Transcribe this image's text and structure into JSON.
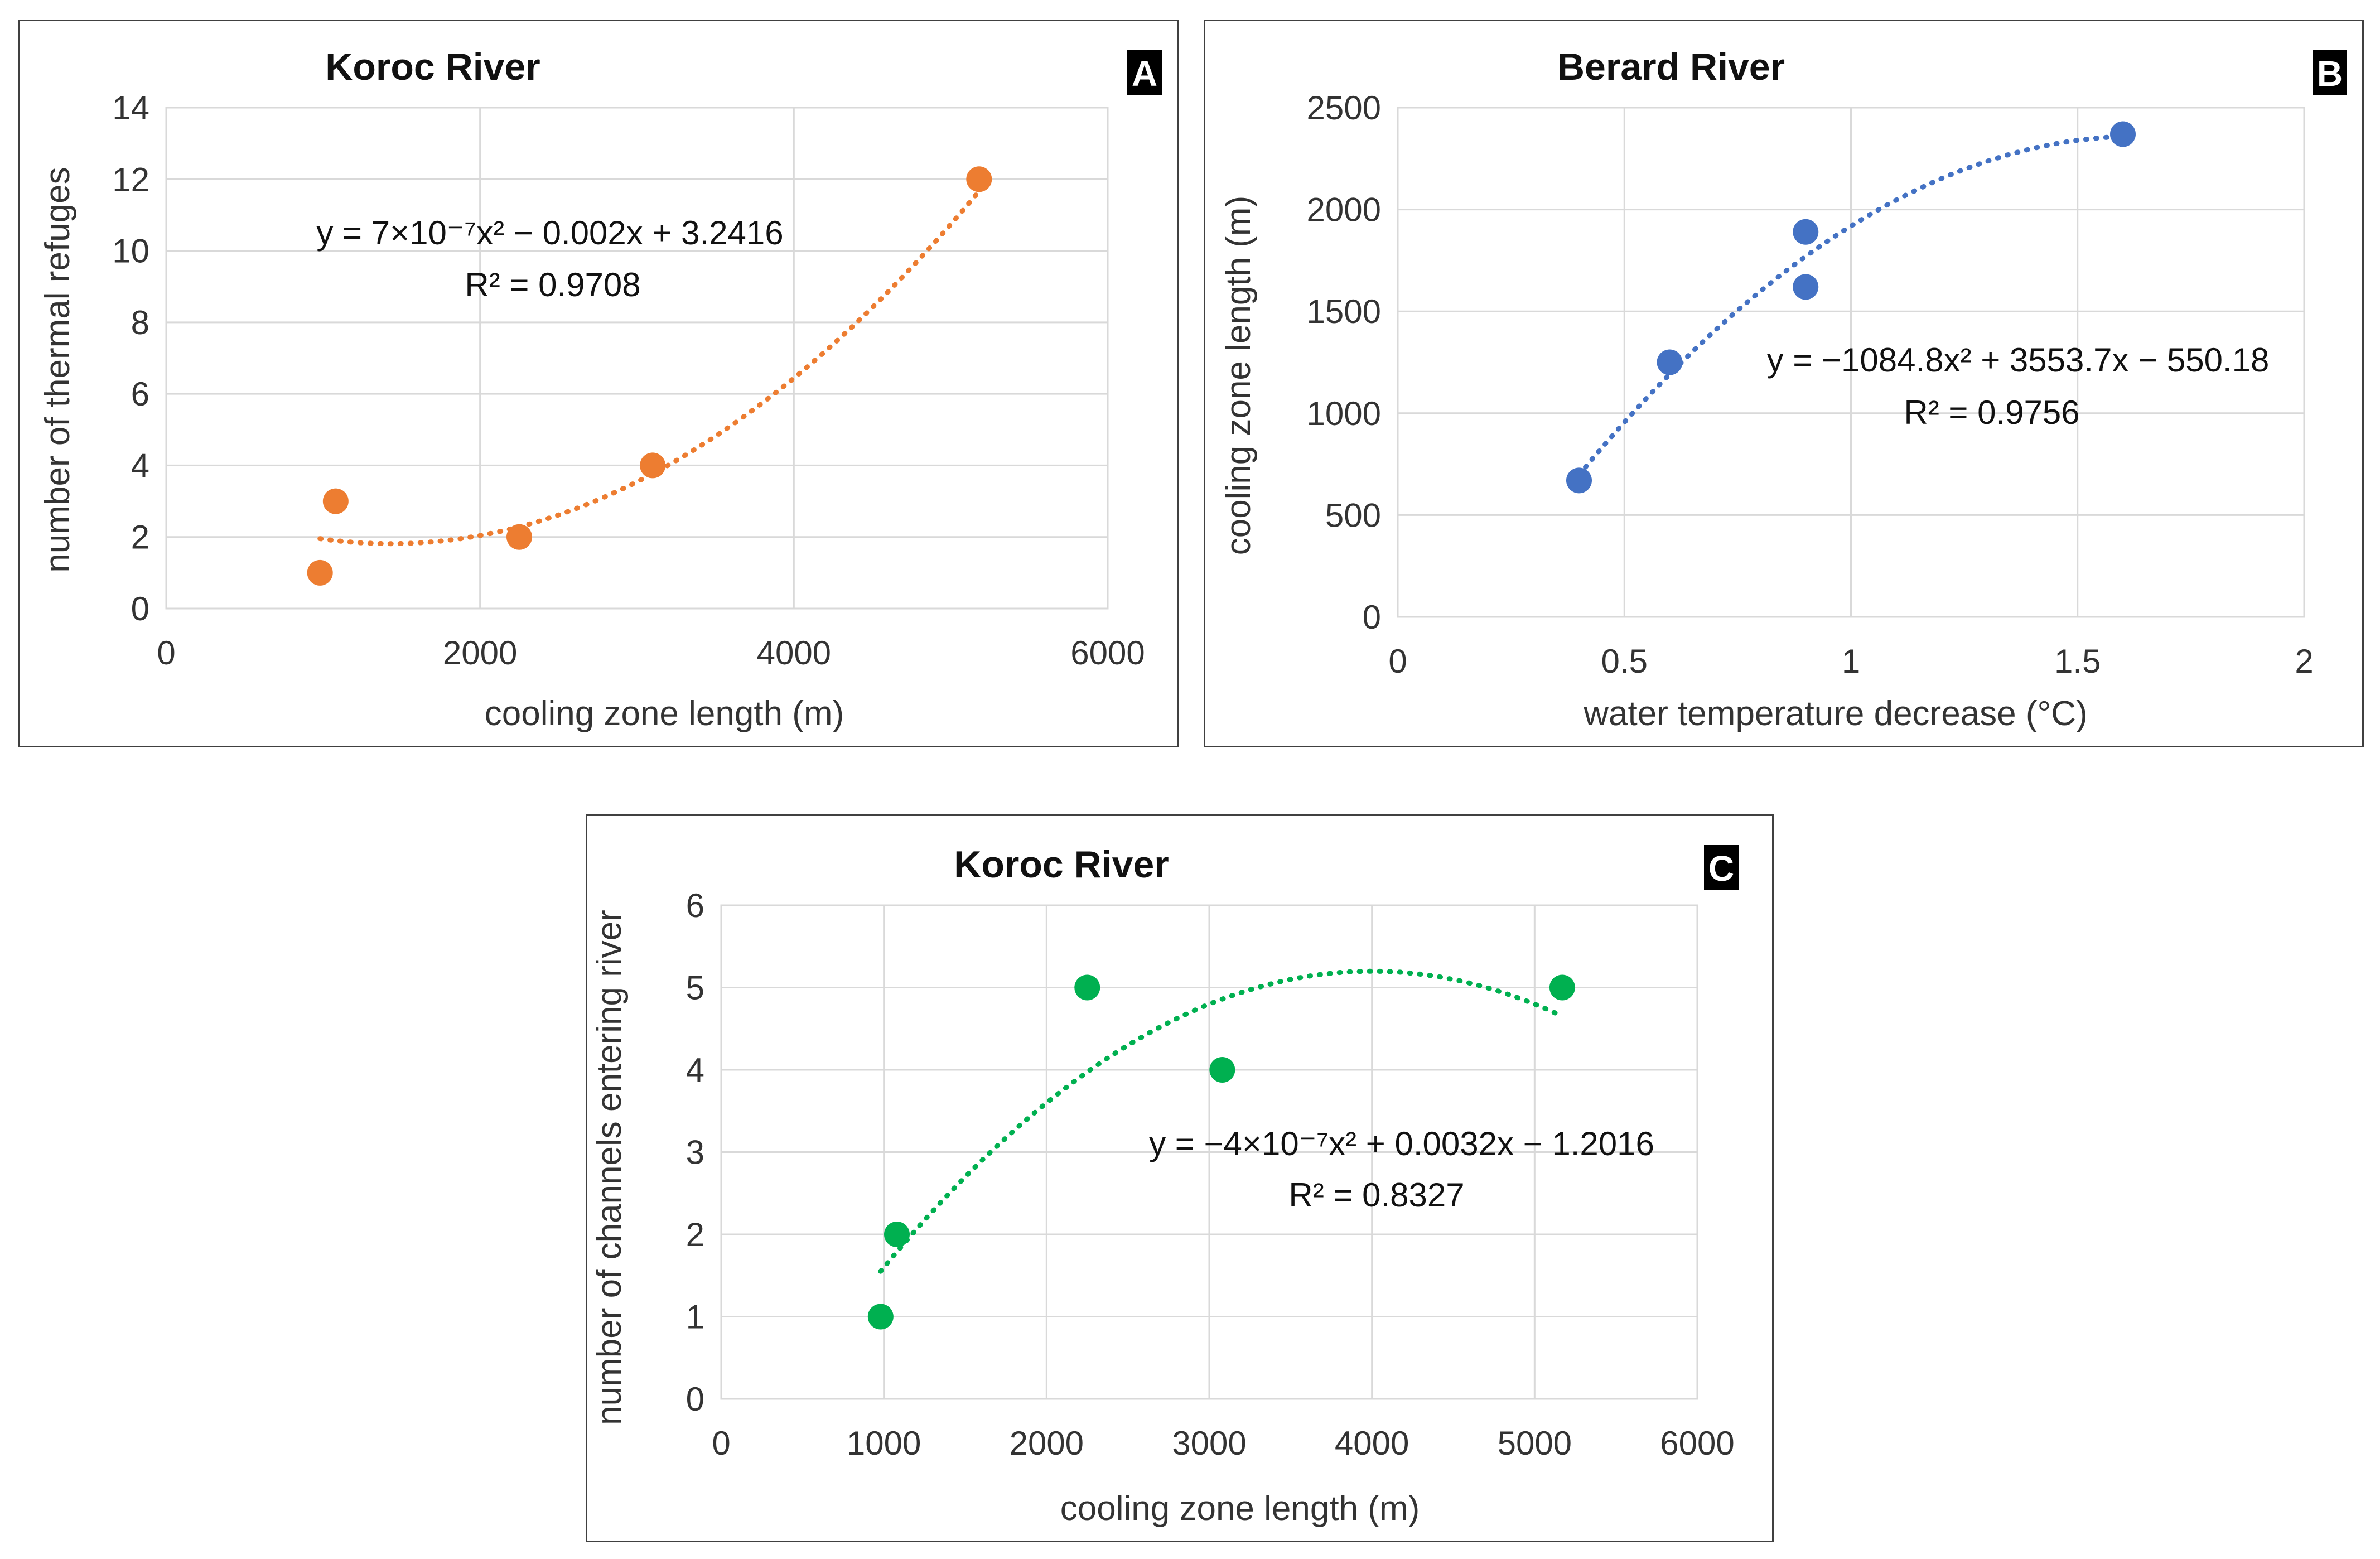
{
  "chart_data": [
    {
      "id": "A",
      "type": "scatter",
      "badge": "A",
      "title": "Koroc River",
      "xlabel": "cooling zone length (m)",
      "ylabel": "number of thermal refuges",
      "xlim": [
        0,
        6000
      ],
      "ylim": [
        0,
        14
      ],
      "xticks": [
        "0",
        "2000",
        "4000",
        "6000"
      ],
      "yticks": [
        "0",
        "2",
        "4",
        "6",
        "8",
        "10",
        "12",
        "14"
      ],
      "grid": true,
      "color": "#ED7D31",
      "points": [
        [
          980,
          1
        ],
        [
          1080,
          3
        ],
        [
          2250,
          2
        ],
        [
          3100,
          4
        ],
        [
          5180,
          12
        ]
      ],
      "trendline": {
        "type": "poly2",
        "a": 7e-07,
        "b": -0.002,
        "c": 3.2416,
        "x_range": [
          980,
          5180
        ]
      },
      "equation": "y = 7×10⁻⁷x² − 0.002x + 3.2416",
      "r2": "R² = 0.9708"
    },
    {
      "id": "B",
      "type": "scatter",
      "badge": "B",
      "title": "Berard River",
      "xlabel": "water temperature decrease (°C)",
      "ylabel": "cooling zone length (m)",
      "xlim": [
        0,
        2
      ],
      "ylim": [
        0,
        2500
      ],
      "xticks": [
        "0",
        "0.5",
        "1",
        "1.5",
        "2"
      ],
      "yticks": [
        "0",
        "500",
        "1000",
        "1500",
        "2000",
        "2500"
      ],
      "grid": true,
      "color": "#4472C4",
      "points": [
        [
          0.4,
          670
        ],
        [
          0.6,
          1250
        ],
        [
          0.9,
          1890
        ],
        [
          0.9,
          1620
        ],
        [
          1.6,
          2370
        ]
      ],
      "trendline": {
        "type": "poly2",
        "a": -1084.8,
        "b": 3553.7,
        "c": -550.18,
        "x_range": [
          0.4,
          1.6
        ]
      },
      "equation": "y = −1084.8x² + 3553.7x − 550.18",
      "r2": "R² = 0.9756"
    },
    {
      "id": "C",
      "type": "scatter",
      "badge": "C",
      "title": "Koroc River",
      "xlabel": "cooling zone length (m)",
      "ylabel": "number of channels entering river",
      "xlim": [
        0,
        6000
      ],
      "ylim": [
        0,
        6
      ],
      "xticks": [
        "0",
        "1000",
        "2000",
        "3000",
        "4000",
        "5000",
        "6000"
      ],
      "yticks": [
        "0",
        "1",
        "2",
        "3",
        "4",
        "5",
        "6"
      ],
      "grid": true,
      "color": "#00B050",
      "points": [
        [
          980,
          1
        ],
        [
          1080,
          2
        ],
        [
          2250,
          5
        ],
        [
          3080,
          4
        ],
        [
          5170,
          5
        ]
      ],
      "trendline": {
        "type": "poly2",
        "a": -4e-07,
        "b": 0.0032,
        "c": -1.2016,
        "x_range": [
          980,
          5170
        ]
      },
      "equation": "y = −4×10⁻⁷x² + 0.0032x − 1.2016",
      "r2": "R² = 0.8327"
    }
  ]
}
